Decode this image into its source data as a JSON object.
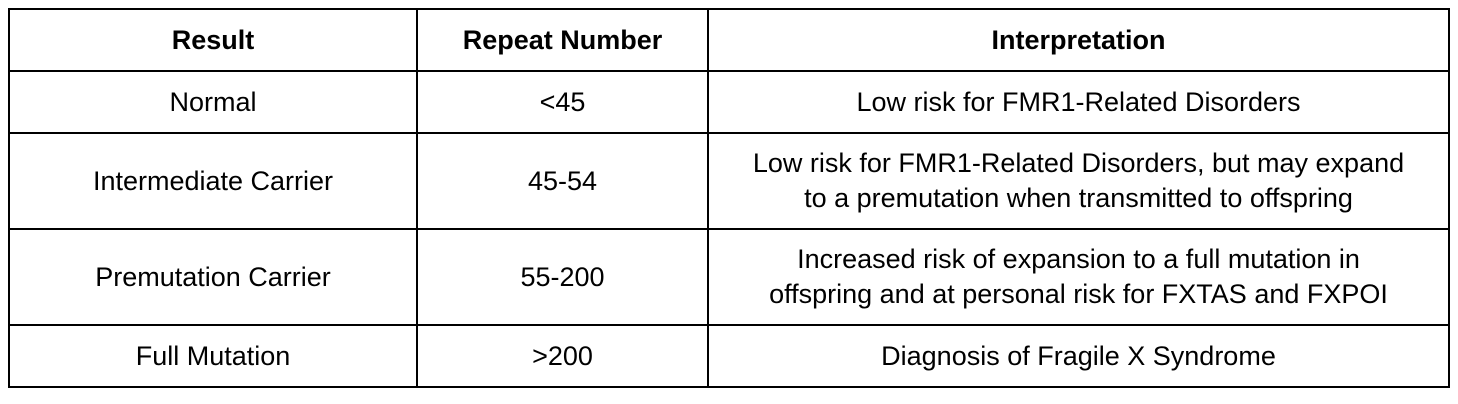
{
  "table": {
    "headers": [
      "Result",
      "Repeat Number",
      "Interpretation"
    ],
    "rows": [
      {
        "result": "Normal",
        "repeat_number": "<45",
        "interpretation_lines": [
          "Low risk for FMR1-Related Disorders"
        ]
      },
      {
        "result": "Intermediate Carrier",
        "repeat_number": "45-54",
        "interpretation_lines": [
          "Low risk for FMR1-Related Disorders, but may expand",
          "to a premutation when transmitted to offspring"
        ]
      },
      {
        "result": "Premutation Carrier",
        "repeat_number": "55-200",
        "interpretation_lines": [
          "Increased risk of expansion to a full mutation in",
          "offspring and at personal risk for FXTAS and FXPOI"
        ]
      },
      {
        "result": "Full Mutation",
        "repeat_number": ">200",
        "interpretation_lines": [
          "Diagnosis of Fragile X Syndrome"
        ]
      }
    ]
  }
}
